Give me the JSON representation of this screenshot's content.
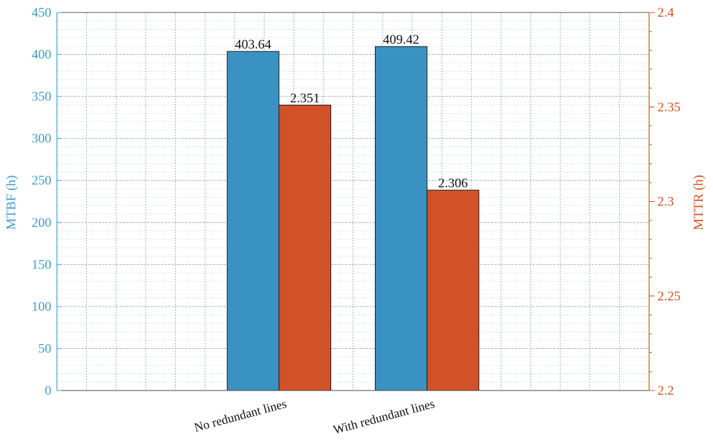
{
  "chart_data": {
    "type": "bar",
    "categories": [
      "No redundant lines",
      "With redundant lines"
    ],
    "series": [
      {
        "axis": "left",
        "values": [
          403.64,
          409.42
        ],
        "color": "#3a92c2",
        "value_labels": [
          "403.64",
          "409.42"
        ]
      },
      {
        "axis": "right",
        "values": [
          2.351,
          2.306
        ],
        "color": "#d15226",
        "value_labels": [
          "2.351",
          "2.306"
        ]
      }
    ],
    "y_left": {
      "label": "MTBF (h)",
      "lim": [
        0,
        450
      ],
      "ticks": [
        0,
        50,
        100,
        150,
        200,
        250,
        300,
        350,
        400,
        450
      ],
      "tick_labels": [
        "0",
        "50",
        "100",
        "150",
        "200",
        "250",
        "300",
        "350",
        "400",
        "450"
      ],
      "color": "#3d9ccf"
    },
    "y_right": {
      "label": "MTTR (h)",
      "lim": [
        2.2,
        2.4
      ],
      "ticks": [
        2.2,
        2.25,
        2.3,
        2.35,
        2.4
      ],
      "tick_labels": [
        "2.2",
        "2.25",
        "2.3",
        "2.35",
        "2.4"
      ],
      "color": "#d24f1f"
    },
    "grid": true,
    "minor_grid": true,
    "xlim": [
      -1.5,
      2.5
    ]
  }
}
